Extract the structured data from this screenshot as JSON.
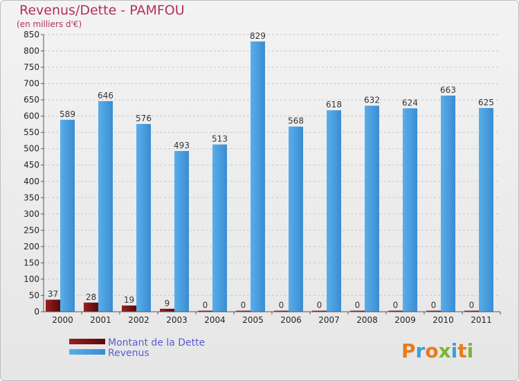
{
  "chart_data": {
    "type": "bar",
    "title": "Revenus/Dette - PAMFOU",
    "subtitle": "(en milliers d'€)",
    "categories": [
      "2000",
      "2001",
      "2002",
      "2003",
      "2004",
      "2005",
      "2006",
      "2007",
      "2008",
      "2009",
      "2010",
      "2011"
    ],
    "series": [
      {
        "name": "Montant de la Dette",
        "color": "#7a1010",
        "values": [
          37,
          28,
          19,
          9,
          0,
          0,
          0,
          0,
          0,
          0,
          0,
          0
        ]
      },
      {
        "name": "Revenus",
        "color": "#4d9fe0",
        "values": [
          589,
          646,
          576,
          493,
          513,
          829,
          568,
          618,
          632,
          624,
          663,
          625
        ]
      }
    ],
    "ylim": [
      0,
      850
    ],
    "yticks": [
      0,
      50,
      100,
      150,
      200,
      250,
      300,
      350,
      400,
      450,
      500,
      550,
      600,
      650,
      700,
      750,
      800,
      850
    ],
    "grid": true,
    "legend": "bottom-left"
  },
  "brand": {
    "logo_text": "Proxiti",
    "logo_colors": [
      "#e87b1c",
      "#3aa0d8",
      "#e87b1c",
      "#7bb72c",
      "#3aa0d8",
      "#e87b1c",
      "#7bb72c"
    ]
  }
}
